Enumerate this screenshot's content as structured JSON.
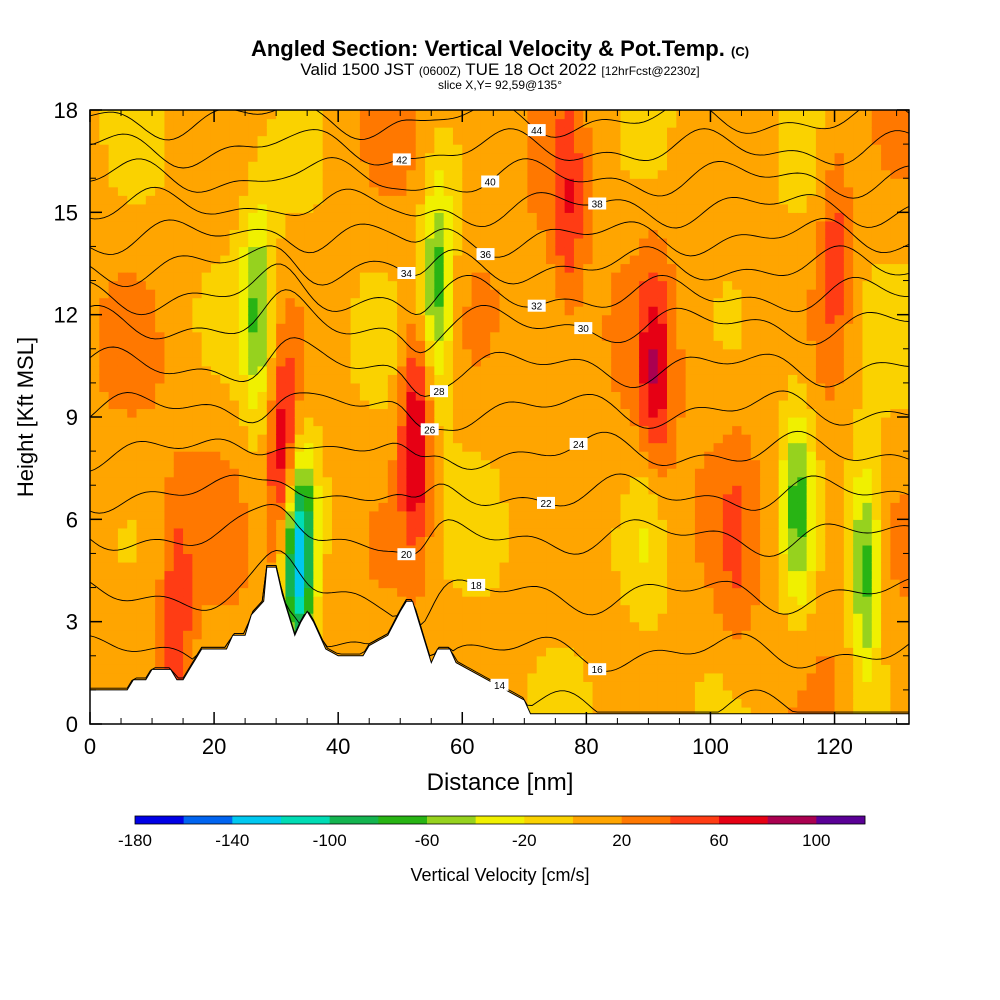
{
  "title": {
    "main": "Angled Section: Vertical Velocity & Pot.Temp.",
    "tag": "(C)",
    "valid_a": "Valid 1500 JST",
    "valid_zone": "(0600Z)",
    "valid_b": "TUE 18 Oct 2022",
    "valid_fcst": "[12hrFcst@2230z]",
    "slice": "slice X,Y= 92,59@135°"
  },
  "colorbar": {
    "label": "Vertical Velocity [cm/s]",
    "tick_labels": [
      "-180",
      "-140",
      "-100",
      "-60",
      "-20",
      "20",
      "60",
      "100"
    ],
    "tick_values": [
      -180,
      -140,
      -100,
      -60,
      -20,
      20,
      60,
      100
    ],
    "min": -180,
    "max": 120,
    "step": 20,
    "colors": [
      "#0000e6",
      "#0064f0",
      "#00c8f0",
      "#00dcb4",
      "#14b450",
      "#28b414",
      "#96d21e",
      "#f0f000",
      "#fad200",
      "#ffa500",
      "#ff7800",
      "#ff3c14",
      "#e60014",
      "#aa0050",
      "#5a0096"
    ]
  },
  "chart_data": {
    "type": "heatmap",
    "xlabel": "Distance [nm]",
    "ylabel": "Height [Kft MSL]",
    "xlim": [
      0,
      132
    ],
    "ylim": [
      0,
      18
    ],
    "x_ticks": [
      0,
      20,
      40,
      60,
      80,
      100,
      120
    ],
    "y_ticks": [
      0,
      3,
      6,
      9,
      12,
      15,
      18
    ],
    "x_tick_labels": [
      "0",
      "20",
      "40",
      "60",
      "80",
      "100",
      "120"
    ],
    "y_tick_labels": [
      "0",
      "3",
      "6",
      "9",
      "12",
      "15",
      "18"
    ],
    "background_value": 10,
    "velocity_features": [
      {
        "x": 77,
        "z": 15,
        "value": 50
      },
      {
        "x": 120,
        "z": 14,
        "value": 55
      },
      {
        "x": 91,
        "z": 10,
        "value": 70
      },
      {
        "x": 31.5,
        "z": 7.5,
        "value": 100
      },
      {
        "x": 33.5,
        "z": 5,
        "value": -150
      },
      {
        "x": 27,
        "z": 12,
        "value": -60
      },
      {
        "x": 52.5,
        "z": 8.5,
        "value": 90
      },
      {
        "x": 56,
        "z": 13,
        "value": -70
      },
      {
        "x": 114,
        "z": 6.5,
        "value": -65
      },
      {
        "x": 125,
        "z": 4.5,
        "value": -75
      },
      {
        "x": 14,
        "z": 3,
        "value": 55
      },
      {
        "x": 90,
        "z": 6,
        "value": -15
      },
      {
        "x": 104,
        "z": 5,
        "value": 30
      }
    ],
    "theta_contours": [
      {
        "value": 14,
        "label": "14"
      },
      {
        "value": 16,
        "label": "16"
      },
      {
        "value": 18,
        "label": "18"
      },
      {
        "value": 20,
        "label": "20"
      },
      {
        "value": 22,
        "label": "22"
      },
      {
        "value": 24,
        "label": "24"
      },
      {
        "value": 26,
        "label": "26"
      },
      {
        "value": 28,
        "label": "28"
      },
      {
        "value": 30,
        "label": "30"
      },
      {
        "value": 32,
        "label": "32"
      },
      {
        "value": 34,
        "label": "34"
      },
      {
        "value": 36,
        "label": "36"
      },
      {
        "value": 38,
        "label": "38"
      },
      {
        "value": 40,
        "label": "40"
      },
      {
        "value": 42,
        "label": "42"
      },
      {
        "value": 44,
        "label": "44"
      }
    ],
    "terrain_profile": [
      [
        0,
        1.0
      ],
      [
        6,
        1.0
      ],
      [
        7,
        1.3
      ],
      [
        9,
        1.3
      ],
      [
        10,
        1.6
      ],
      [
        13,
        1.6
      ],
      [
        14,
        1.3
      ],
      [
        15,
        1.3
      ],
      [
        16,
        1.6
      ],
      [
        17,
        1.9
      ],
      [
        18,
        2.2
      ],
      [
        22,
        2.2
      ],
      [
        23,
        2.6
      ],
      [
        25,
        2.6
      ],
      [
        26,
        3.2
      ],
      [
        28,
        3.6
      ],
      [
        28.5,
        4.6
      ],
      [
        30,
        4.6
      ],
      [
        31,
        3.8
      ],
      [
        33,
        2.6
      ],
      [
        34,
        3.0
      ],
      [
        35,
        3.3
      ],
      [
        36,
        3.0
      ],
      [
        37,
        2.6
      ],
      [
        38,
        2.2
      ],
      [
        40,
        2.0
      ],
      [
        44,
        2.0
      ],
      [
        45,
        2.3
      ],
      [
        48,
        2.6
      ],
      [
        50,
        3.3
      ],
      [
        51,
        3.6
      ],
      [
        52,
        3.6
      ],
      [
        53,
        3.0
      ],
      [
        54,
        2.4
      ],
      [
        55,
        1.8
      ],
      [
        56,
        2.2
      ],
      [
        58,
        2.2
      ],
      [
        59,
        1.8
      ],
      [
        61,
        1.6
      ],
      [
        63,
        1.4
      ],
      [
        66,
        1.1
      ],
      [
        68,
        0.9
      ],
      [
        70,
        0.7
      ],
      [
        71,
        0.3
      ],
      [
        132,
        0.3
      ]
    ]
  }
}
